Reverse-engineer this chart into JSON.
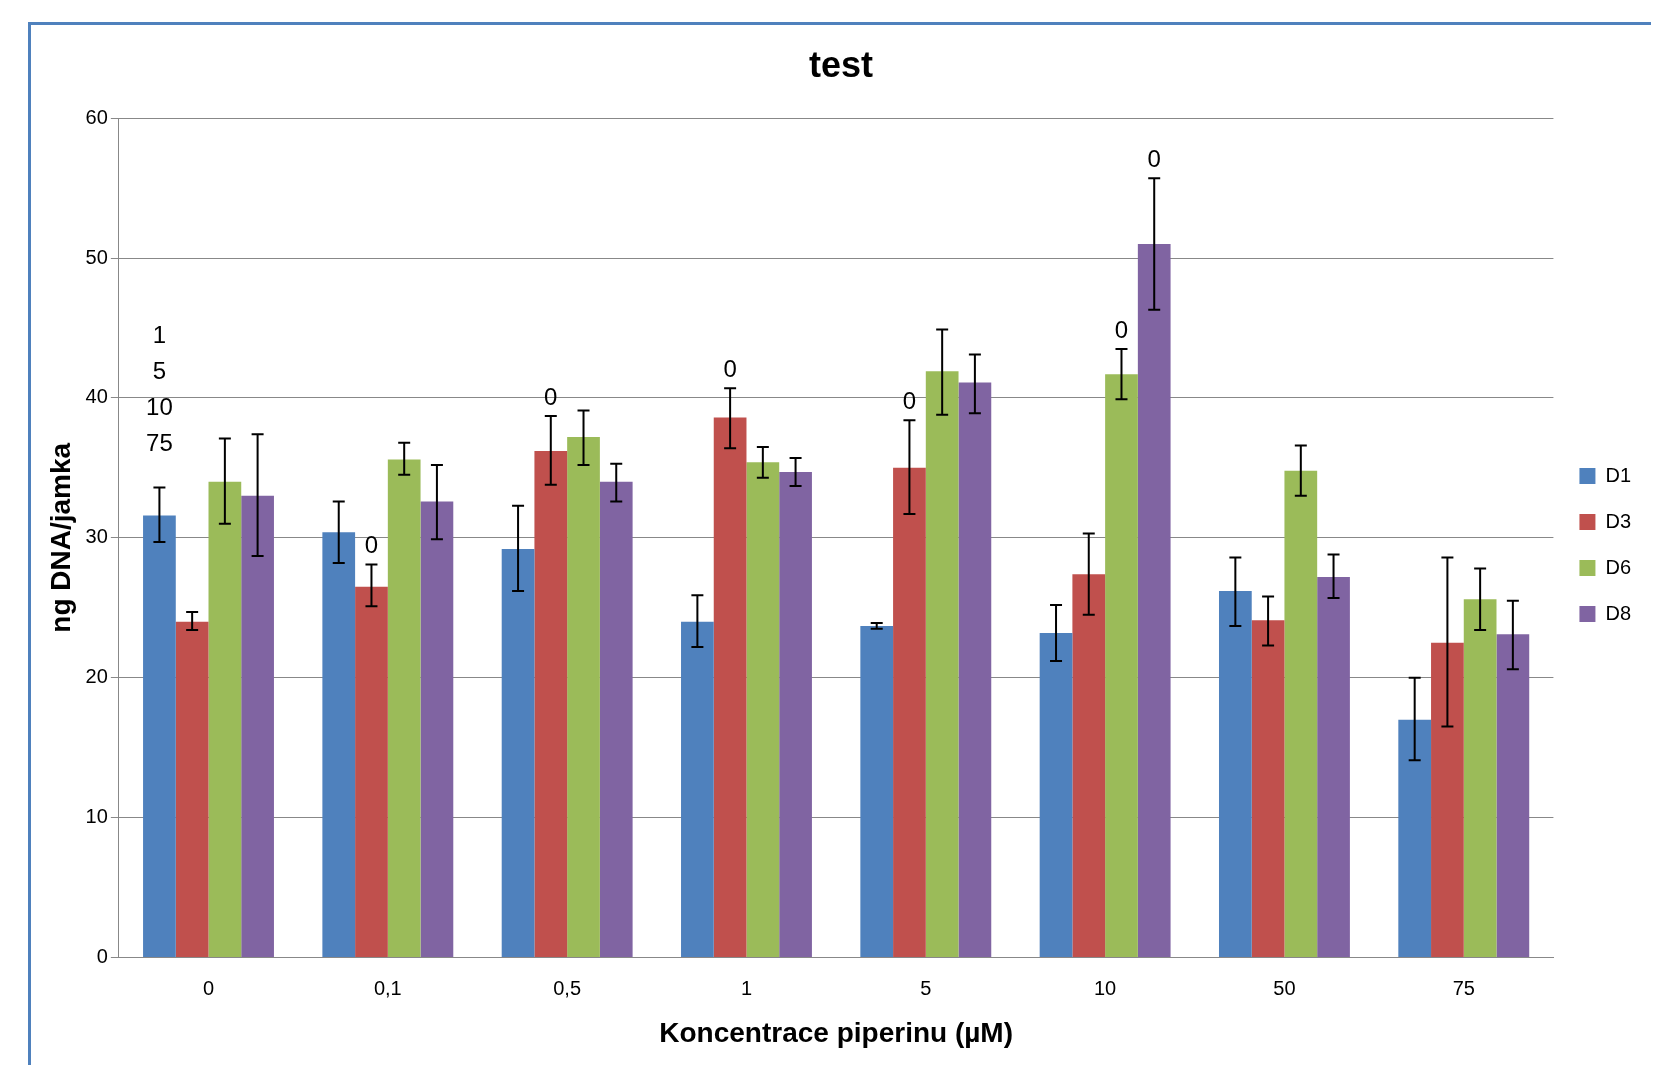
{
  "chart_data": {
    "type": "bar",
    "title": "test",
    "xlabel": "Koncentrace piperinu (µM)",
    "ylabel": "ng DNA/jamka",
    "categories": [
      "0",
      "0,1",
      "0,5",
      "1",
      "5",
      "10",
      "50",
      "75"
    ],
    "series": [
      {
        "name": "D1",
        "color": "#4f81bd",
        "values": [
          31.6,
          30.4,
          29.2,
          24.0,
          23.7,
          23.2,
          26.2,
          17.0
        ],
        "errors": [
          [
            29.7,
            33.6
          ],
          [
            28.2,
            32.6
          ],
          [
            26.2,
            32.3
          ],
          [
            22.2,
            25.9
          ],
          [
            23.5,
            23.9
          ],
          [
            21.2,
            25.2
          ],
          [
            23.7,
            28.6
          ],
          [
            14.1,
            20.0
          ]
        ]
      },
      {
        "name": "D3",
        "color": "#c0504d",
        "values": [
          24.0,
          26.5,
          36.2,
          38.6,
          35.0,
          27.4,
          24.1,
          22.5
        ],
        "errors": [
          [
            23.4,
            24.7
          ],
          [
            25.1,
            28.1
          ],
          [
            33.8,
            38.7
          ],
          [
            36.4,
            40.7
          ],
          [
            31.7,
            38.4
          ],
          [
            24.5,
            30.3
          ],
          [
            22.3,
            25.8
          ],
          [
            16.5,
            28.6
          ]
        ]
      },
      {
        "name": "D6",
        "color": "#9bbb59",
        "values": [
          34.0,
          35.6,
          37.2,
          35.4,
          41.9,
          41.7,
          34.8,
          25.6
        ],
        "errors": [
          [
            31.0,
            37.1
          ],
          [
            34.5,
            36.8
          ],
          [
            35.2,
            39.1
          ],
          [
            34.3,
            36.5
          ],
          [
            38.8,
            44.9
          ],
          [
            39.9,
            43.5
          ],
          [
            33.0,
            36.6
          ],
          [
            23.4,
            27.8
          ]
        ]
      },
      {
        "name": "D8",
        "color": "#8064a2",
        "values": [
          33.0,
          32.6,
          34.0,
          34.7,
          41.1,
          51.0,
          27.2,
          23.1
        ],
        "errors": [
          [
            28.7,
            37.4
          ],
          [
            29.9,
            35.2
          ],
          [
            32.6,
            35.3
          ],
          [
            33.7,
            35.7
          ],
          [
            38.9,
            43.1
          ],
          [
            46.3,
            55.7
          ],
          [
            25.7,
            28.8
          ],
          [
            20.6,
            25.5
          ]
        ]
      }
    ],
    "ylim": [
      0,
      60
    ],
    "yticks": [
      0,
      10,
      20,
      30,
      40,
      50,
      60
    ],
    "grid": "y",
    "legend": "right",
    "annotations": [
      "1",
      "5",
      "10",
      "75",
      {
        "text": "0",
        "x": "0,1",
        "y": 26.5
      },
      {
        "text": "0",
        "x": "0,5",
        "y": 36.2
      },
      {
        "text": "0",
        "x": "1",
        "y": 38.6
      },
      {
        "text": "0",
        "x": "5",
        "y": 35.0
      },
      {
        "text": "0",
        "x": "10",
        "y": 41.7
      },
      "0"
    ]
  }
}
